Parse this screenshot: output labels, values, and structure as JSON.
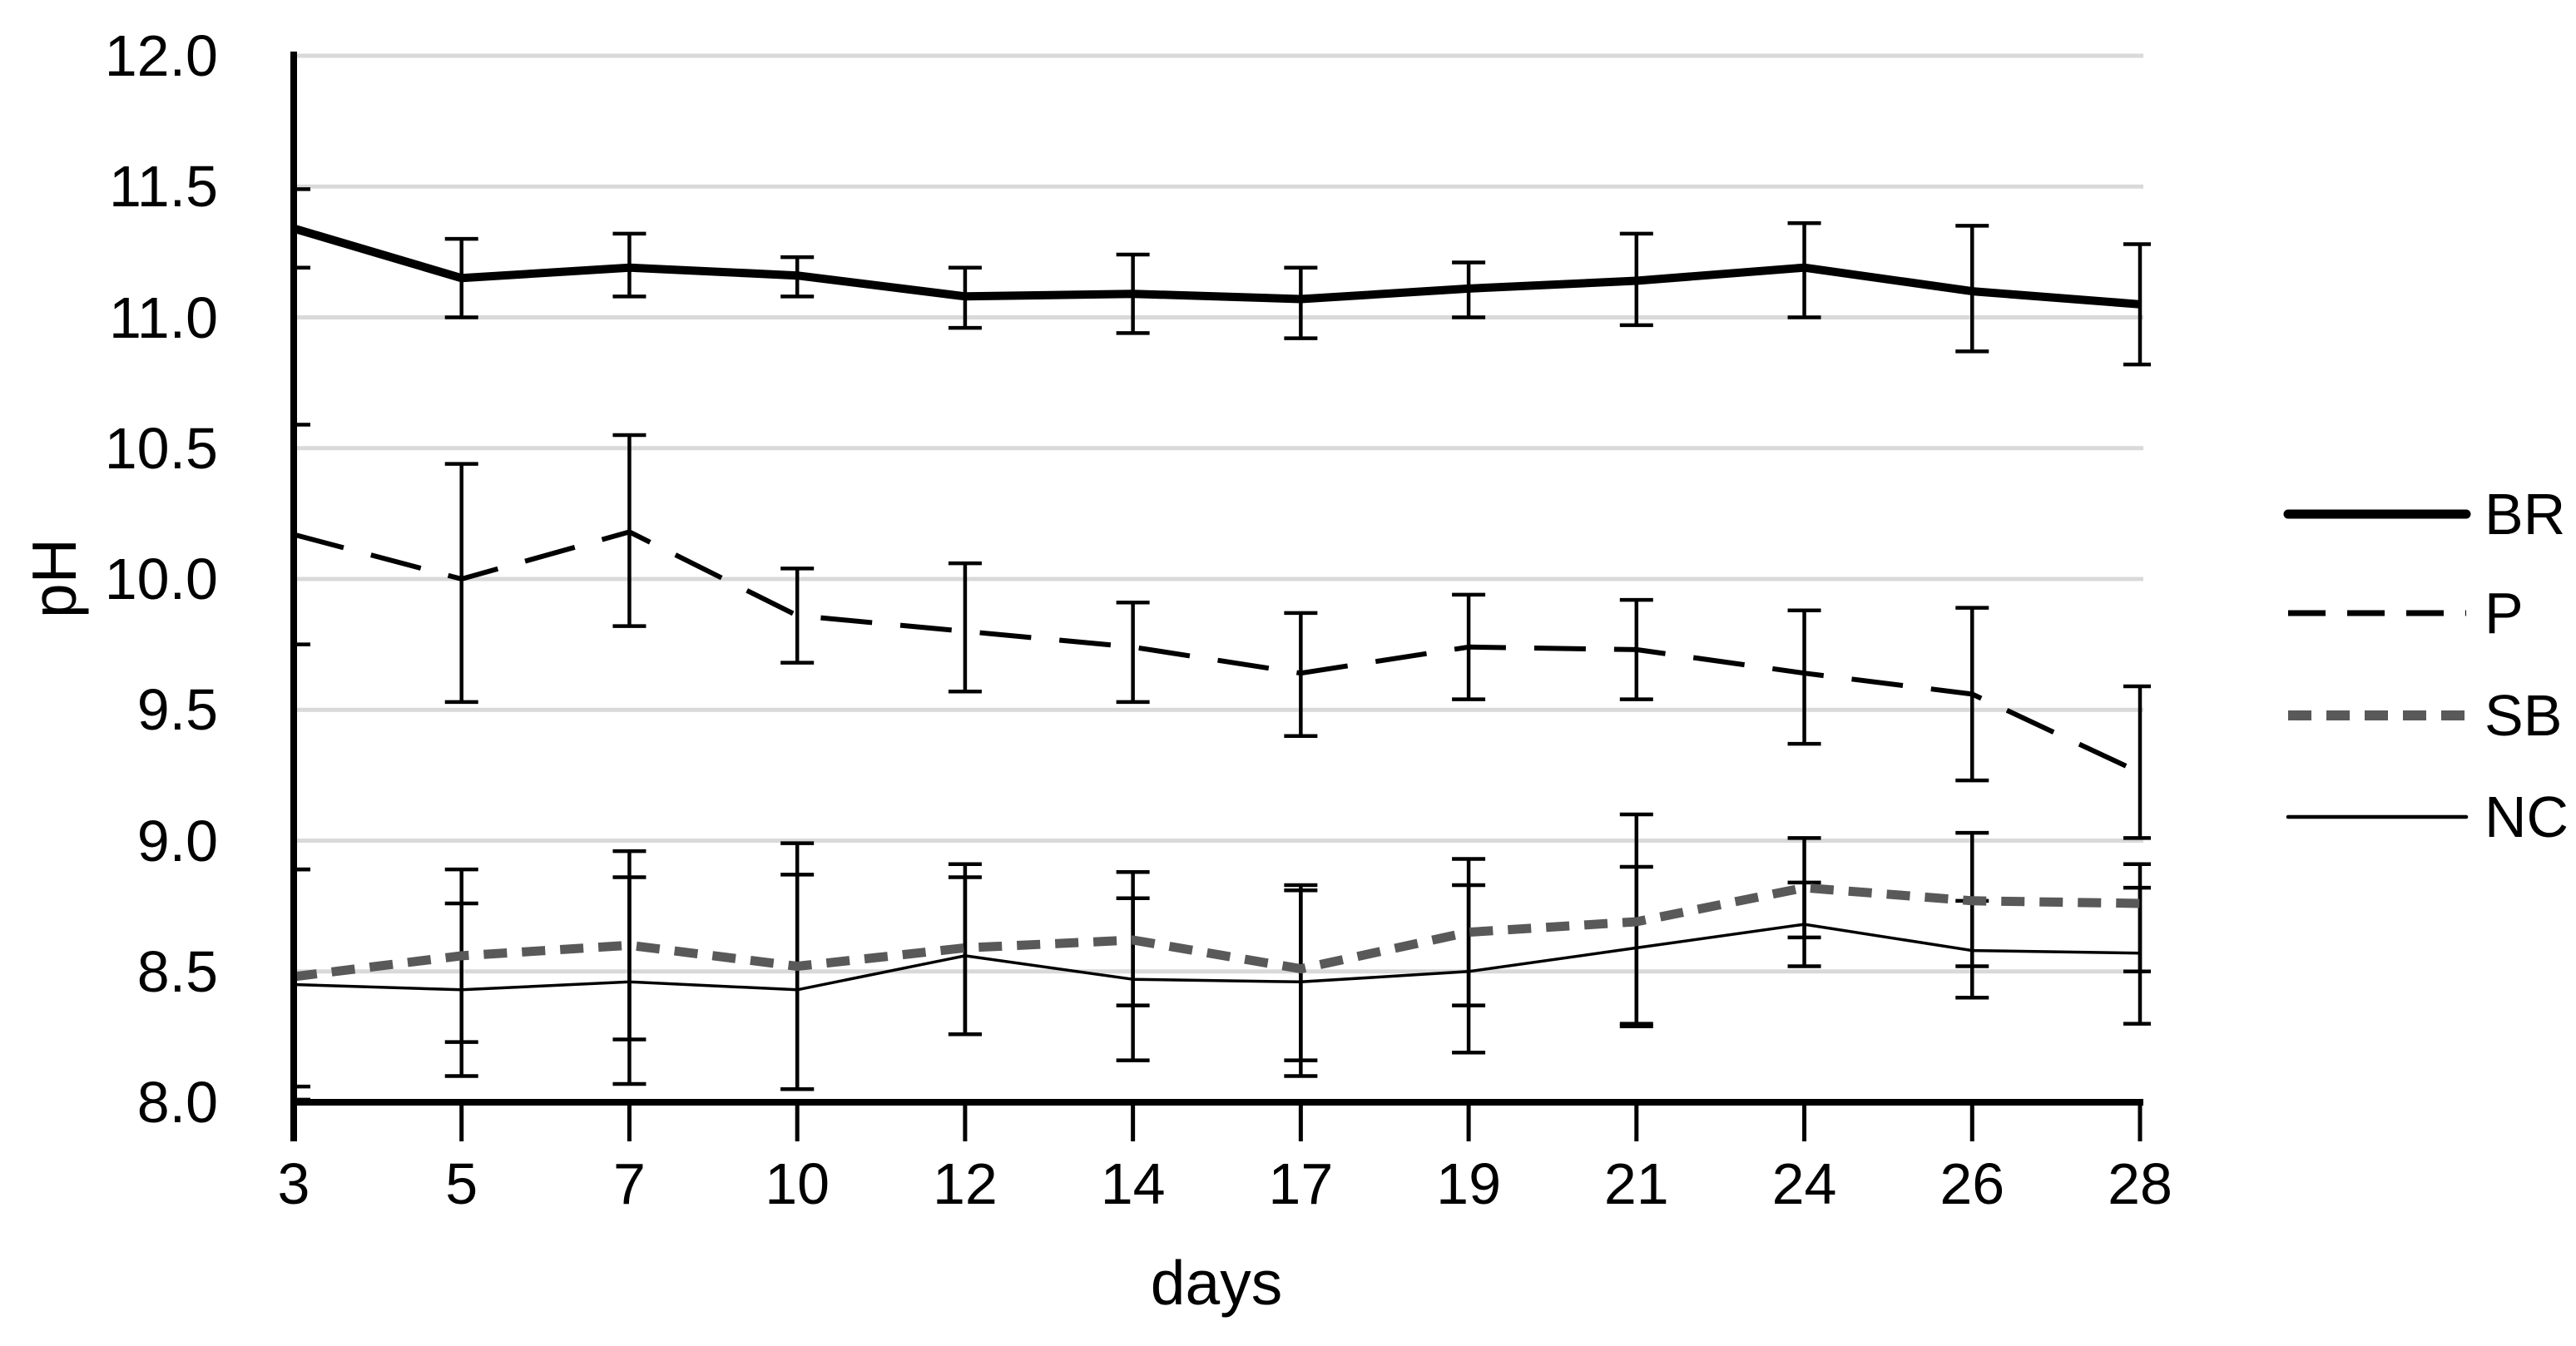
{
  "page": {
    "background": "#ffffff"
  },
  "chart_data": {
    "type": "line",
    "title": "",
    "xlabel": "days",
    "ylabel": "pH",
    "x_categories": [
      3,
      5,
      7,
      10,
      12,
      14,
      17,
      19,
      21,
      24,
      26,
      28
    ],
    "ylim": [
      8.0,
      12.0
    ],
    "ytick_step": 0.5,
    "ytick_labels": [
      "12.0",
      "11.5",
      "11.0",
      "10.5",
      "10.0",
      "9.5",
      "9.0",
      "8.5",
      "8.0"
    ],
    "grid": "horizontal-only",
    "grid_color": "#d9d9d9",
    "axis_color": "#000000",
    "legend_position": "right-middle",
    "error_bars": {
      "color": "#000000",
      "stroke_width": 4.5,
      "cap_width": 40
    },
    "series": [
      {
        "name": "BR",
        "color": "#000000",
        "stroke_width": 10,
        "dash": "solid",
        "legend_dash": "solid",
        "values": [
          11.34,
          11.15,
          11.19,
          11.16,
          11.08,
          11.09,
          11.07,
          11.11,
          11.14,
          11.19,
          11.1,
          11.05
        ],
        "err_up": [
          0.15,
          0.15,
          0.13,
          0.07,
          0.11,
          0.15,
          0.12,
          0.1,
          0.18,
          0.17,
          0.25,
          0.23
        ],
        "err_dn": [
          0.15,
          0.15,
          0.11,
          0.08,
          0.12,
          0.15,
          0.15,
          0.11,
          0.17,
          0.19,
          0.23,
          0.23
        ]
      },
      {
        "name": "P",
        "color": "#000000",
        "stroke_width": 6,
        "dash": "62 34",
        "legend_dash": "45 26",
        "values": [
          10.17,
          10.0,
          10.18,
          9.86,
          9.8,
          9.74,
          9.64,
          9.74,
          9.73,
          9.64,
          9.56,
          9.26
        ],
        "err_up": [
          0.42,
          0.44,
          0.37,
          0.18,
          0.26,
          0.17,
          0.23,
          0.2,
          0.19,
          0.24,
          0.33,
          0.33
        ],
        "err_dn": [
          0.42,
          0.47,
          0.36,
          0.18,
          0.23,
          0.21,
          0.24,
          0.2,
          0.19,
          0.27,
          0.33,
          0.25
        ]
      },
      {
        "name": "SB",
        "color": "#595959",
        "stroke_width": 11,
        "dash": "28 18",
        "legend_dash": "28 18",
        "values": [
          8.48,
          8.56,
          8.6,
          8.52,
          8.59,
          8.62,
          8.51,
          8.65,
          8.69,
          8.82,
          8.77,
          8.76
        ],
        "err_up": [
          0.41,
          0.33,
          0.36,
          0.47,
          0.32,
          0.26,
          0.32,
          0.28,
          0.41,
          0.19,
          0.26,
          0.15
        ],
        "err_dn": [
          0.42,
          0.33,
          0.36,
          0.47,
          0.33,
          0.25,
          0.35,
          0.28,
          0.39,
          0.19,
          0.25,
          0.26
        ]
      },
      {
        "name": "NC",
        "color": "#000000",
        "stroke_width": 3.5,
        "dash": "solid",
        "legend_dash": "solid",
        "values": [
          8.45,
          8.43,
          8.46,
          8.43,
          8.56,
          8.47,
          8.46,
          8.5,
          8.59,
          8.68,
          8.58,
          8.57
        ],
        "err_up": [
          0.44,
          0.33,
          0.4,
          0.44,
          0.3,
          0.31,
          0.35,
          0.33,
          0.31,
          0.16,
          0.19,
          0.25
        ],
        "err_dn": [
          0.44,
          0.33,
          0.39,
          0.38,
          0.3,
          0.31,
          0.36,
          0.31,
          0.3,
          0.16,
          0.18,
          0.27
        ]
      }
    ]
  }
}
